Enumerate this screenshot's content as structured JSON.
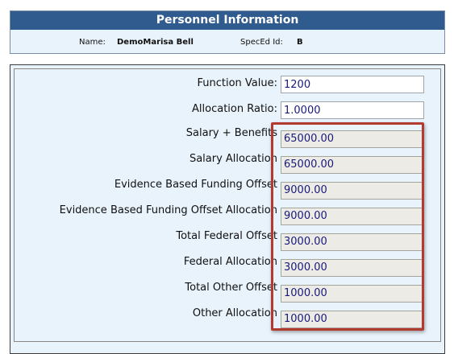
{
  "header": {
    "title": "Personnel Information"
  },
  "info": {
    "name_label": "Name:",
    "name_value": "DemoMarisa Bell",
    "speced_label": "SpecEd Id:",
    "speced_value": "B"
  },
  "fields": [
    {
      "label": "Function Value:",
      "value": "1200",
      "readonly": false
    },
    {
      "label": "Allocation Ratio:",
      "value": "1.0000",
      "readonly": false
    },
    {
      "label": "Salary + Benefits",
      "value": "65000.00",
      "readonly": true
    },
    {
      "label": "Salary Allocation",
      "value": "65000.00",
      "readonly": true
    },
    {
      "label": "Evidence Based Funding Offset",
      "value": "9000.00",
      "readonly": true
    },
    {
      "label": "Evidence Based Funding Offset Allocation",
      "value": "9000.00",
      "readonly": true
    },
    {
      "label": "Total Federal Offset",
      "value": "3000.00",
      "readonly": true
    },
    {
      "label": "Federal Allocation",
      "value": "3000.00",
      "readonly": true
    },
    {
      "label": "Total Other Offset",
      "value": "1000.00",
      "readonly": true
    },
    {
      "label": "Other Allocation",
      "value": "1000.00",
      "readonly": true
    }
  ],
  "colors": {
    "header_bg": "#2f5b8f",
    "panel_bg": "#e9f3fb",
    "highlight": "#b23a2e",
    "value_text": "#1a1a7a"
  }
}
